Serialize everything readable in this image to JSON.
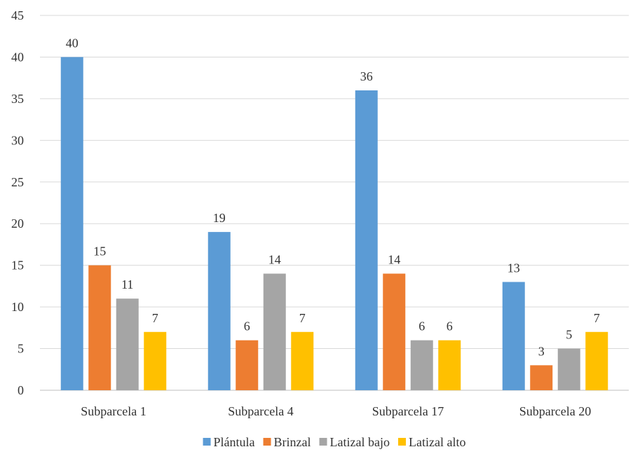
{
  "chart_data": {
    "type": "bar",
    "categories": [
      "Subparcela 1",
      "Subparcela 4",
      "Subparcela 17",
      "Subparcela 20"
    ],
    "series": [
      {
        "name": "Plántula",
        "values": [
          40,
          19,
          36,
          13
        ],
        "color": "#5B9BD5"
      },
      {
        "name": "Brinzal",
        "values": [
          15,
          6,
          14,
          3
        ],
        "color": "#ED7D31"
      },
      {
        "name": "Latizal bajo",
        "values": [
          11,
          14,
          6,
          5
        ],
        "color": "#A5A5A5"
      },
      {
        "name": "Latizal alto",
        "values": [
          7,
          7,
          6,
          7
        ],
        "color": "#FFC000"
      }
    ],
    "ylim": [
      0,
      45
    ],
    "yticks": [
      0,
      5,
      10,
      15,
      20,
      25,
      30,
      35,
      40,
      45
    ],
    "grid": true,
    "legend": "bottom",
    "data_labels": true
  }
}
